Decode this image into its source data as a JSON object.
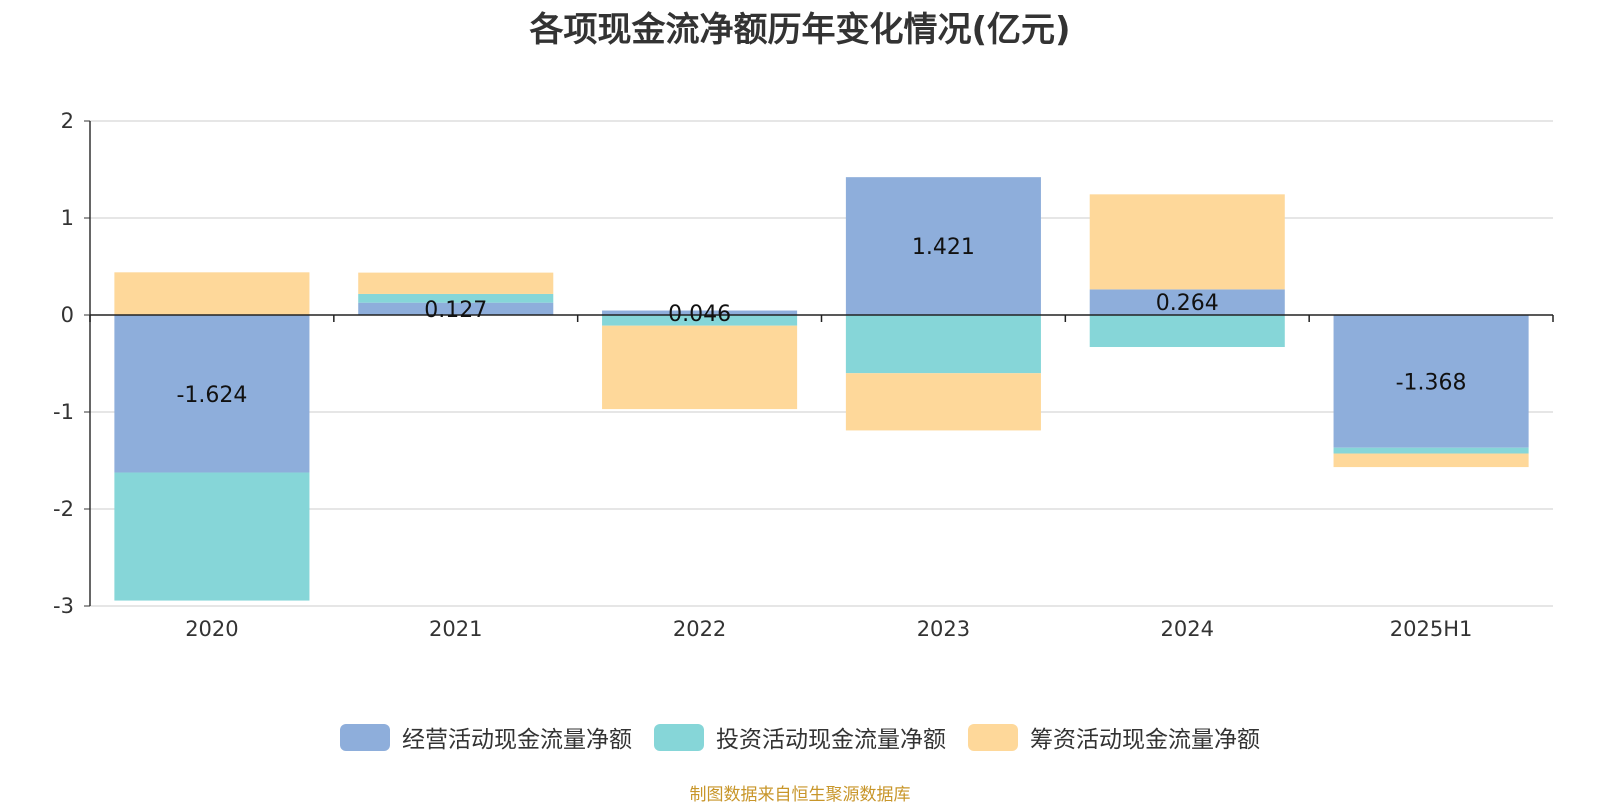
{
  "chart_data": {
    "type": "bar",
    "stacked": true,
    "title": "各项现金流净额历年变化情况(亿元)",
    "categories": [
      "2020",
      "2021",
      "2022",
      "2023",
      "2024",
      "2025H1"
    ],
    "series": [
      {
        "name": "经营活动现金流量净额",
        "color": "#8eaedb",
        "values": [
          -1.624,
          0.127,
          0.046,
          1.421,
          0.264,
          -1.368
        ]
      },
      {
        "name": "投资活动现金流量净额",
        "color": "#86d6d8",
        "values": [
          -1.32,
          0.09,
          -0.11,
          -0.6,
          -0.33,
          -0.06
        ]
      },
      {
        "name": "筹资活动现金流量净额",
        "color": "#fed89a",
        "values": [
          0.44,
          0.22,
          -0.86,
          -0.59,
          0.98,
          -0.14
        ]
      }
    ],
    "data_labels": [
      "-1.624",
      "0.127",
      "0.046",
      "1.421",
      "0.264",
      "-1.368"
    ],
    "ylim": [
      -3,
      2
    ],
    "yticks": [
      "2",
      "1",
      "0",
      "-1",
      "-2",
      "-3"
    ],
    "ytick_values": [
      2,
      1,
      0,
      -1,
      -2,
      -3
    ],
    "grid": true,
    "legend_position": "bottom-center",
    "xlabel": "",
    "ylabel": ""
  },
  "footer": {
    "source": "制图数据来自恒生聚源数据库",
    "source_color": "#c8962a"
  }
}
